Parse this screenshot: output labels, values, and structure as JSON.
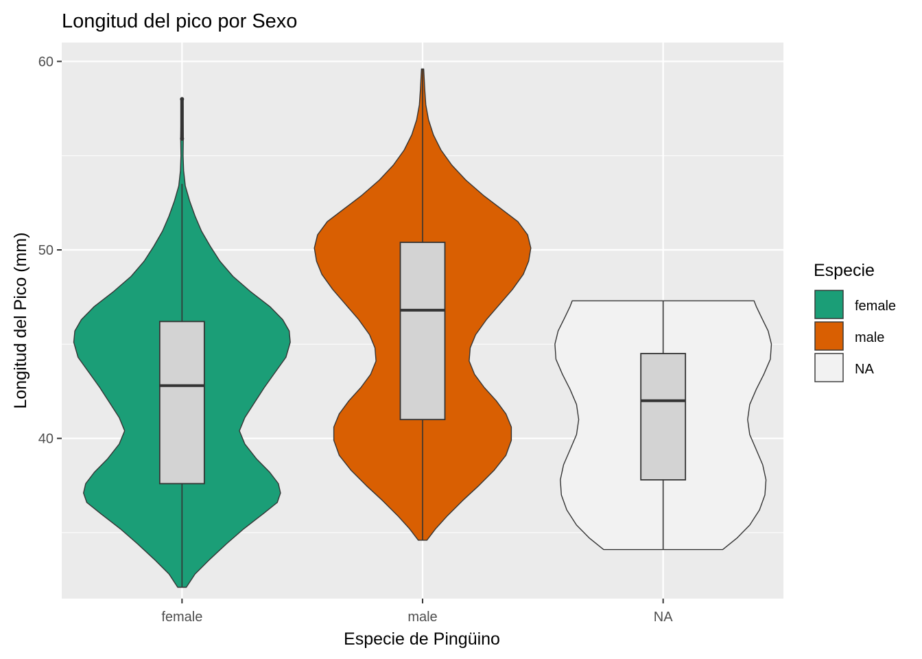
{
  "chart_data": {
    "type": "violin",
    "title": "Longitud del pico por Sexo",
    "xlabel": "Especie de Pingüino",
    "ylabel": "Longitud del Pico (mm)",
    "ylim": [
      31.5,
      61.0
    ],
    "y_ticks": [
      40,
      50,
      60
    ],
    "y_tick_labels": [
      "40",
      "50",
      "60"
    ],
    "categories": [
      "female",
      "male",
      "NA"
    ],
    "grid": true,
    "legend": {
      "title": "Especie",
      "position": "right",
      "entries": [
        "female",
        "male",
        "NA"
      ]
    },
    "series": [
      {
        "category": "female",
        "color": "#1B9E77",
        "min": 32.1,
        "max": 58.0,
        "box": {
          "q1": 37.6,
          "median": 42.8,
          "q3": 46.2,
          "whisker_low": 32.1,
          "whisker_high": 53.5
        },
        "outliers": [
          55.9,
          58.0
        ],
        "density": [
          [
            32.1,
            0.04
          ],
          [
            32.8,
            0.12
          ],
          [
            33.6,
            0.26
          ],
          [
            34.4,
            0.41
          ],
          [
            35.2,
            0.57
          ],
          [
            36.0,
            0.75
          ],
          [
            36.6,
            0.88
          ],
          [
            37.1,
            0.91
          ],
          [
            37.6,
            0.89
          ],
          [
            38.2,
            0.81
          ],
          [
            38.9,
            0.69
          ],
          [
            39.7,
            0.58
          ],
          [
            40.4,
            0.53
          ],
          [
            41.1,
            0.58
          ],
          [
            41.9,
            0.67
          ],
          [
            42.7,
            0.76
          ],
          [
            43.5,
            0.86
          ],
          [
            44.3,
            0.96
          ],
          [
            45.1,
            1.0
          ],
          [
            45.7,
            0.99
          ],
          [
            46.3,
            0.93
          ],
          [
            47.0,
            0.81
          ],
          [
            47.8,
            0.63
          ],
          [
            48.6,
            0.47
          ],
          [
            49.4,
            0.35
          ],
          [
            50.2,
            0.26
          ],
          [
            51.0,
            0.18
          ],
          [
            51.8,
            0.12
          ],
          [
            52.6,
            0.07
          ],
          [
            53.4,
            0.03
          ],
          [
            54.2,
            0.015
          ],
          [
            55.0,
            0.01
          ],
          [
            55.9,
            0.012
          ],
          [
            56.8,
            0.01
          ],
          [
            57.6,
            0.01
          ],
          [
            58.0,
            0.008
          ]
        ]
      },
      {
        "category": "male",
        "color": "#D95F02",
        "min": 34.6,
        "max": 59.6,
        "box": {
          "q1": 41.0,
          "median": 46.8,
          "q3": 50.4,
          "whisker_low": 34.6,
          "whisker_high": 59.6
        },
        "outliers": [],
        "density": [
          [
            34.6,
            0.04
          ],
          [
            35.2,
            0.12
          ],
          [
            35.9,
            0.23
          ],
          [
            36.7,
            0.37
          ],
          [
            37.5,
            0.52
          ],
          [
            38.3,
            0.66
          ],
          [
            39.1,
            0.77
          ],
          [
            39.9,
            0.82
          ],
          [
            40.6,
            0.82
          ],
          [
            41.3,
            0.77
          ],
          [
            42.0,
            0.68
          ],
          [
            42.7,
            0.57
          ],
          [
            43.4,
            0.48
          ],
          [
            44.1,
            0.43
          ],
          [
            44.8,
            0.44
          ],
          [
            45.5,
            0.49
          ],
          [
            46.3,
            0.59
          ],
          [
            47.1,
            0.71
          ],
          [
            47.9,
            0.83
          ],
          [
            48.7,
            0.93
          ],
          [
            49.4,
            0.98
          ],
          [
            50.1,
            1.0
          ],
          [
            50.8,
            0.97
          ],
          [
            51.5,
            0.88
          ],
          [
            52.2,
            0.72
          ],
          [
            52.9,
            0.56
          ],
          [
            53.7,
            0.4
          ],
          [
            54.5,
            0.27
          ],
          [
            55.3,
            0.17
          ],
          [
            56.1,
            0.1
          ],
          [
            56.9,
            0.055
          ],
          [
            57.7,
            0.03
          ],
          [
            58.5,
            0.02
          ],
          [
            59.2,
            0.014
          ],
          [
            59.6,
            0.01
          ]
        ]
      },
      {
        "category": "NA",
        "color": "#F2F2F2",
        "min": 34.1,
        "max": 47.3,
        "box": {
          "q1": 37.8,
          "median": 42.0,
          "q3": 44.5,
          "whisker_low": 34.1,
          "whisker_high": 47.3
        },
        "outliers": [],
        "density": [
          [
            34.1,
            0.55
          ],
          [
            34.7,
            0.68
          ],
          [
            35.4,
            0.8
          ],
          [
            36.2,
            0.89
          ],
          [
            37.0,
            0.94
          ],
          [
            37.8,
            0.95
          ],
          [
            38.6,
            0.92
          ],
          [
            39.4,
            0.86
          ],
          [
            40.2,
            0.8
          ],
          [
            41.0,
            0.78
          ],
          [
            41.8,
            0.8
          ],
          [
            42.6,
            0.86
          ],
          [
            43.4,
            0.93
          ],
          [
            44.2,
            0.99
          ],
          [
            45.0,
            1.0
          ],
          [
            45.7,
            0.97
          ],
          [
            46.4,
            0.91
          ],
          [
            47.0,
            0.86
          ],
          [
            47.3,
            0.84
          ]
        ]
      }
    ]
  }
}
